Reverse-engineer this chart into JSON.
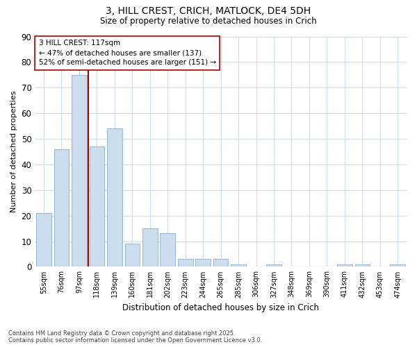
{
  "title_line1": "3, HILL CREST, CRICH, MATLOCK, DE4 5DH",
  "title_line2": "Size of property relative to detached houses in Crich",
  "xlabel": "Distribution of detached houses by size in Crich",
  "ylabel": "Number of detached properties",
  "categories": [
    "55sqm",
    "76sqm",
    "97sqm",
    "118sqm",
    "139sqm",
    "160sqm",
    "181sqm",
    "202sqm",
    "223sqm",
    "244sqm",
    "265sqm",
    "285sqm",
    "306sqm",
    "327sqm",
    "348sqm",
    "369sqm",
    "390sqm",
    "411sqm",
    "432sqm",
    "453sqm",
    "474sqm"
  ],
  "values": [
    21,
    46,
    75,
    47,
    54,
    9,
    15,
    13,
    3,
    3,
    3,
    1,
    0,
    1,
    0,
    0,
    0,
    1,
    1,
    0,
    1
  ],
  "bar_color": "#ccdded",
  "bar_edge_color": "#99bbd6",
  "bg_color": "#ffffff",
  "grid_color": "#d0dce8",
  "vline_color": "#aa0000",
  "vline_index": 3,
  "annotation_text": "3 HILL CREST: 117sqm\n← 47% of detached houses are smaller (137)\n52% of semi-detached houses are larger (151) →",
  "annotation_box_color": "#ffffff",
  "annotation_box_edge": "#aa0000",
  "ylim": [
    0,
    90
  ],
  "yticks": [
    0,
    10,
    20,
    30,
    40,
    50,
    60,
    70,
    80,
    90
  ],
  "footer_line1": "Contains HM Land Registry data © Crown copyright and database right 2025.",
  "footer_line2": "Contains public sector information licensed under the Open Government Licence v3.0."
}
